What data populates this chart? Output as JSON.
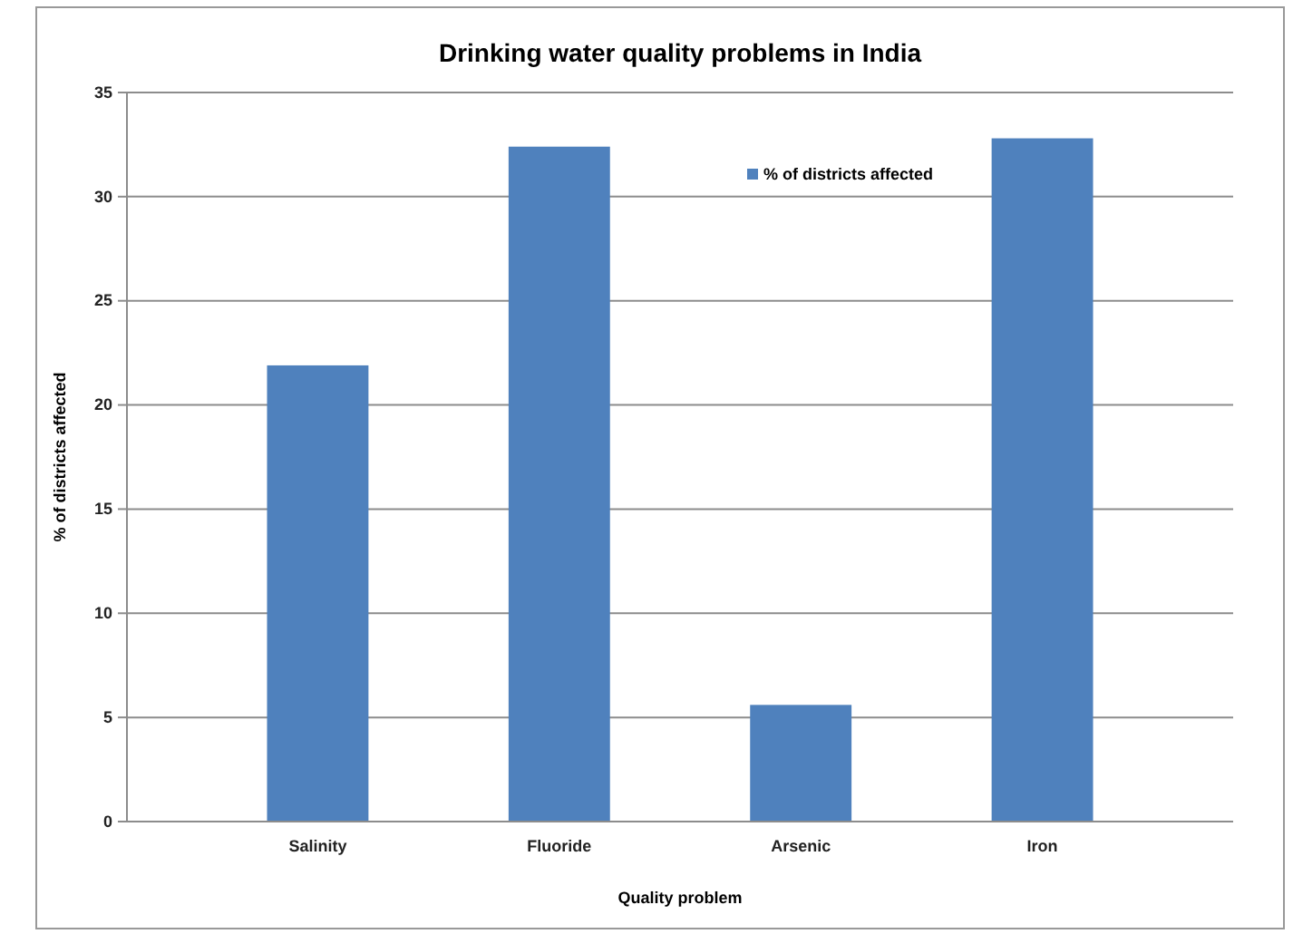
{
  "chart_data": {
    "type": "bar",
    "title": "Drinking water quality problems in India",
    "xlabel": "Quality  problem",
    "ylabel": "% of districts affected",
    "categories": [
      "Salinity",
      "Fluoride",
      "Arsenic",
      "Iron"
    ],
    "series": [
      {
        "name": "% of districts affected",
        "color": "#4f81bd",
        "values": [
          21.9,
          32.4,
          5.6,
          32.8
        ]
      }
    ],
    "ylim": [
      0,
      35
    ],
    "yticks": [
      0,
      5,
      10,
      15,
      20,
      25,
      30,
      35
    ],
    "grid": "y",
    "legend": "top right"
  }
}
